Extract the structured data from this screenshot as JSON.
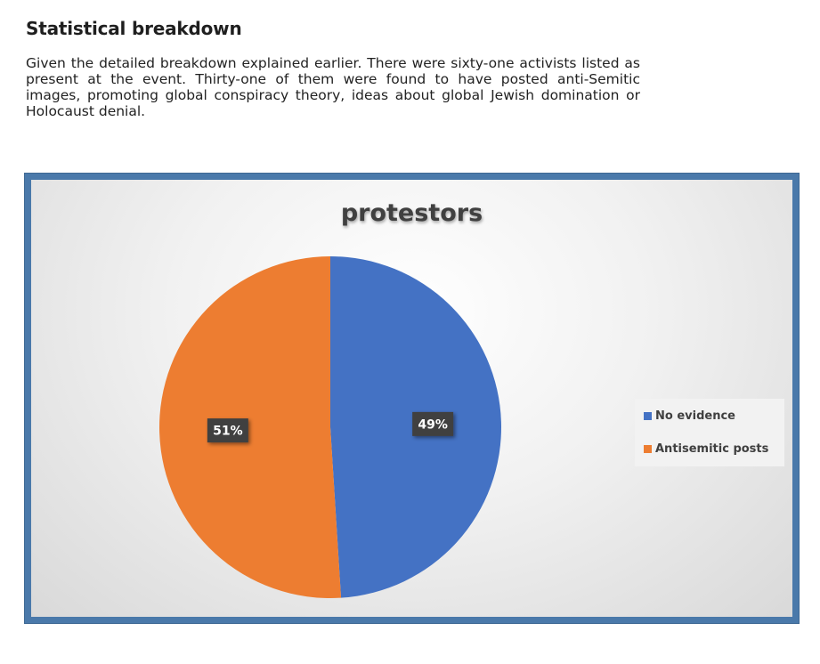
{
  "heading": "Statistical breakdown",
  "paragraph": "Given the detailed breakdown explained earlier. There were sixty-one activists listed as present at the event. Thirty-one of them were found to have posted anti-Semitic images, promoting global conspiracy theory, ideas about global Jewish domination or Holocaust denial.",
  "chart_data": {
    "type": "pie",
    "title": "protestors",
    "categories": [
      "No evidence",
      "Antisemitic posts"
    ],
    "values": [
      49,
      51
    ],
    "data_labels": [
      "49%",
      "51%"
    ],
    "colors": [
      "#4472c4",
      "#ed7d31"
    ],
    "legend_position": "right",
    "start_angle_deg": 0,
    "direction": "clockwise"
  }
}
